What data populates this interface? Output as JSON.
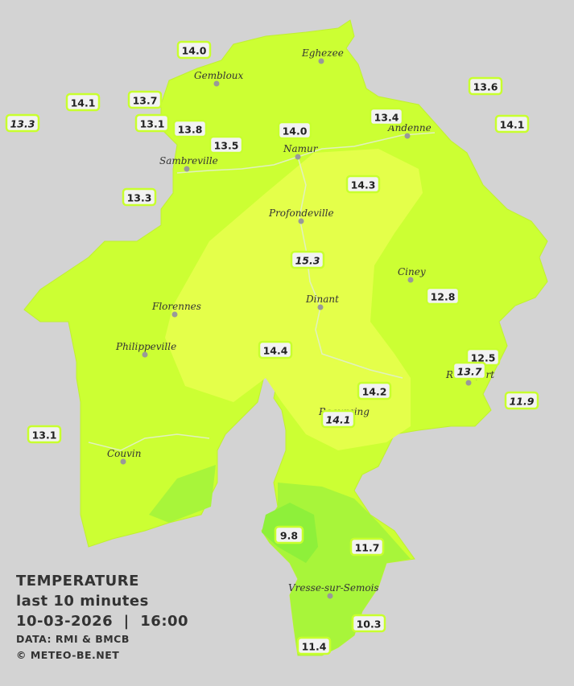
{
  "cities": [
    "Eghezee",
    "Gembloux",
    "Andenne",
    "Namur",
    "Sambreville",
    "Profondeville",
    "Ciney",
    "Dinant",
    "Florennes",
    "Philippeville",
    "Rochefort",
    "Beauraing",
    "Couvin",
    "Vresse-sur-Semois"
  ],
  "stations": [
    {
      "label": "14.0",
      "italic": false
    },
    {
      "label": "14.1",
      "italic": false
    },
    {
      "label": "13.7",
      "italic": false
    },
    {
      "label": "13.1",
      "italic": false
    },
    {
      "label": "13.3",
      "italic": true
    },
    {
      "label": "13.8",
      "italic": false
    },
    {
      "label": "13.5",
      "italic": false
    },
    {
      "label": "14.0",
      "italic": false
    },
    {
      "label": "13.4",
      "italic": false
    },
    {
      "label": "13.6",
      "italic": false
    },
    {
      "label": "14.1",
      "italic": false
    },
    {
      "label": "13.3",
      "italic": false
    },
    {
      "label": "14.3",
      "italic": false
    },
    {
      "label": "15.3",
      "italic": true
    },
    {
      "label": "12.8",
      "italic": false
    },
    {
      "label": "14.4",
      "italic": false
    },
    {
      "label": "12.5",
      "italic": false
    },
    {
      "label": "13.7",
      "italic": true
    },
    {
      "label": "11.9",
      "italic": true
    },
    {
      "label": "14.2",
      "italic": false
    },
    {
      "label": "14.1",
      "italic": true
    },
    {
      "label": "13.1",
      "italic": false
    },
    {
      "label": "9.8",
      "italic": false
    },
    {
      "label": "11.7",
      "italic": false
    },
    {
      "label": "10.3",
      "italic": false
    },
    {
      "label": "11.4",
      "italic": false
    }
  ],
  "legend": {
    "title": "TEMPERATURE",
    "subtitle": "last 10 minutes",
    "timestamp": "10-03-2026  |  16:00",
    "source": "DATA: RMI & BMCB",
    "credit": "© METEO-BE.NET"
  }
}
